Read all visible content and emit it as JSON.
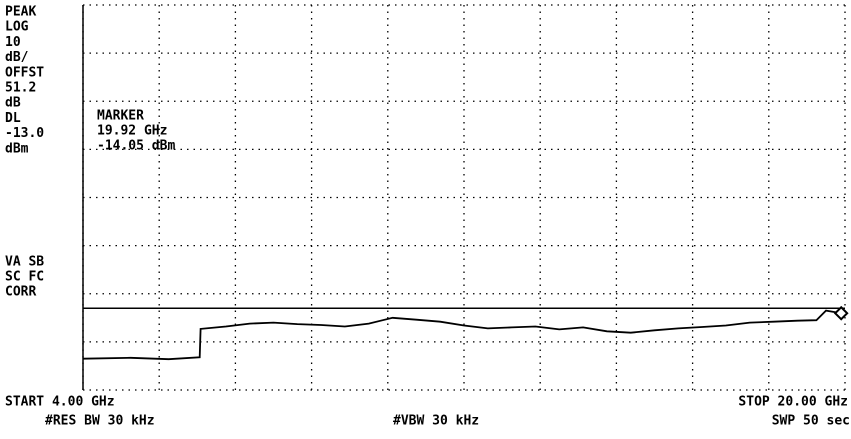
{
  "chart_data": {
    "type": "line",
    "left_annotations": [
      "PEAK",
      "LOG",
      "10",
      "dB/",
      "OFFST",
      "51.2",
      "dB",
      "DL",
      "-13.0",
      "dBm"
    ],
    "status_annotations": [
      "VA SB",
      "SC FC",
      "CORR"
    ],
    "start_label": "START 4.00 GHz",
    "stop_label": "STOP 20.00 GHz",
    "rbw_label": "#RES BW 30 kHz",
    "vbw_label": "#VBW 30 kHz",
    "sweep_label": "SWP 50 sec",
    "marker": {
      "labels": [
        "MARKER",
        "19.92 GHz",
        "-14.05 dBm"
      ],
      "x": 19.92,
      "value": -14.05
    },
    "display_line": -13,
    "x": [
      4.0,
      5.0,
      5.8,
      6.45,
      6.47,
      7.0,
      7.5,
      8.0,
      8.5,
      9.0,
      9.5,
      10.0,
      10.5,
      11.0,
      11.5,
      12.0,
      12.5,
      13.0,
      13.5,
      14.0,
      14.5,
      15.0,
      15.5,
      16.0,
      16.5,
      17.0,
      17.5,
      18.0,
      18.5,
      19.0,
      19.4,
      19.6,
      19.92,
      20.0
    ],
    "values": [
      -23.5,
      -23.3,
      -23.6,
      -23.2,
      -17.3,
      -16.8,
      -16.2,
      -16.0,
      -16.3,
      -16.5,
      -16.8,
      -16.2,
      -15.0,
      -15.4,
      -15.8,
      -16.6,
      -17.2,
      -17.0,
      -16.8,
      -17.4,
      -17.0,
      -17.8,
      -18.1,
      -17.6,
      -17.2,
      -16.9,
      -16.6,
      -16.0,
      -15.8,
      -15.6,
      -15.5,
      -13.5,
      -14.05,
      -13.4
    ],
    "color": "#000000",
    "xlim": [
      4,
      20
    ],
    "xticks": [
      4,
      5.6,
      7.2,
      8.8,
      10.4,
      12,
      13.6,
      15.2,
      16.8,
      18.4,
      20
    ],
    "ylim": [
      -30,
      50
    ],
    "yticks": [
      -30,
      -20,
      -10,
      0,
      10,
      20,
      30,
      40,
      50
    ],
    "grid": true
  }
}
